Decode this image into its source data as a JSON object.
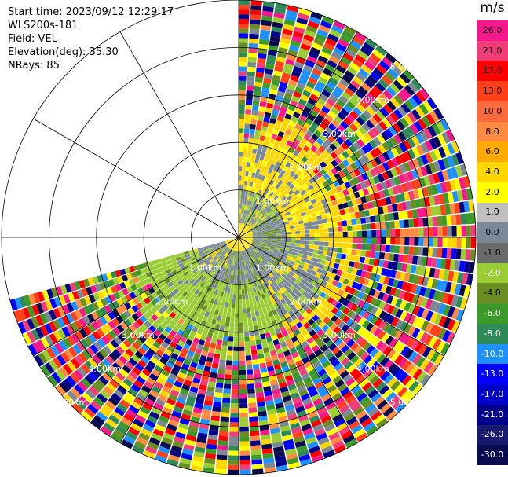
{
  "info": {
    "start_time": "Start time: 2023/09/12 12:29:17",
    "instrument": "WLS200s-181",
    "field": "Field: VEL",
    "elevation": "Elevation(deg): 35.30",
    "nrays": "NRays: 85"
  },
  "colorbar": {
    "unit": "m/s",
    "ticks": [
      "26.0",
      "21.0",
      "17.0",
      "13.0",
      "10.0",
      "8.0",
      "6.0",
      "4.0",
      "2.0",
      "1.0",
      "0.0",
      "-1.0",
      "-2.0",
      "-4.0",
      "-6.0",
      "-8.0",
      "-10.0",
      "-13.0",
      "-17.0",
      "-21.0",
      "-26.0",
      "-30.0"
    ],
    "colors": [
      "#f4188c",
      "#f03c78",
      "#ff0000",
      "#ff4018",
      "#ff6a3c",
      "#ff8a40",
      "#ffaa00",
      "#ffd700",
      "#ffff00",
      "#c0c0c0",
      "#7b8896",
      "#6a6a6a",
      "#9acd32",
      "#6b8e23",
      "#3c9a28",
      "#2e8b57",
      "#1e90ff",
      "#0000ff",
      "#0000cd",
      "#00008b",
      "#191970",
      "#0a0a50"
    ]
  },
  "chart_data": {
    "type": "ppi",
    "field": "VEL",
    "units": "m/s",
    "nrays": 85,
    "elevation_deg": 35.3,
    "range_rings_km": [
      1.0,
      2.0,
      3.0,
      4.0,
      5.0
    ],
    "ring_labels": [
      "1.00km",
      "2.00km",
      "3.00km",
      "4.00km",
      "5.00km"
    ],
    "value_range": [
      -30.0,
      26.0
    ],
    "azimuth_coverage_deg": [
      0,
      255
    ],
    "near_range_pattern": [
      {
        "range_km": [
          0.0,
          0.2
        ],
        "dominant": "2.0 to 4.0"
      },
      {
        "range_km": [
          0.2,
          1.0
        ],
        "dominant": "0.0 to -2.0"
      },
      {
        "range_km": [
          1.0,
          2.0
        ],
        "dominant": "-2.0 to 2.0"
      },
      {
        "range_km": [
          2.0,
          5.0
        ],
        "dominant": "noise (full scale)"
      }
    ]
  }
}
